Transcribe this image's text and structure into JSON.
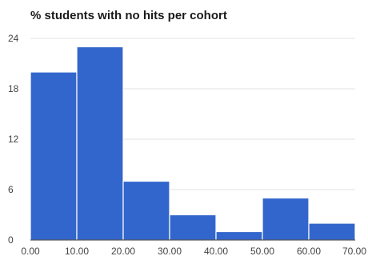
{
  "chart_data": {
    "type": "bar",
    "title": "% students with no hits per cohort",
    "xlabel": "",
    "ylabel": "",
    "bins": [
      {
        "from": 0,
        "to": 10,
        "value": 20
      },
      {
        "from": 10,
        "to": 20,
        "value": 23
      },
      {
        "from": 20,
        "to": 30,
        "value": 7
      },
      {
        "from": 30,
        "to": 40,
        "value": 3
      },
      {
        "from": 40,
        "to": 50,
        "value": 1
      },
      {
        "from": 50,
        "to": 60,
        "value": 5
      },
      {
        "from": 60,
        "to": 70,
        "value": 2
      }
    ],
    "xlim": [
      0,
      70
    ],
    "ylim": [
      0,
      24
    ],
    "x_ticks": [
      "0.00",
      "10.00",
      "20.00",
      "30.00",
      "40.00",
      "50.00",
      "60.00",
      "70.00"
    ],
    "y_ticks": [
      "0",
      "6",
      "12",
      "18",
      "24"
    ],
    "bar_color": "#3366cc",
    "grid": true,
    "legend": "none"
  }
}
